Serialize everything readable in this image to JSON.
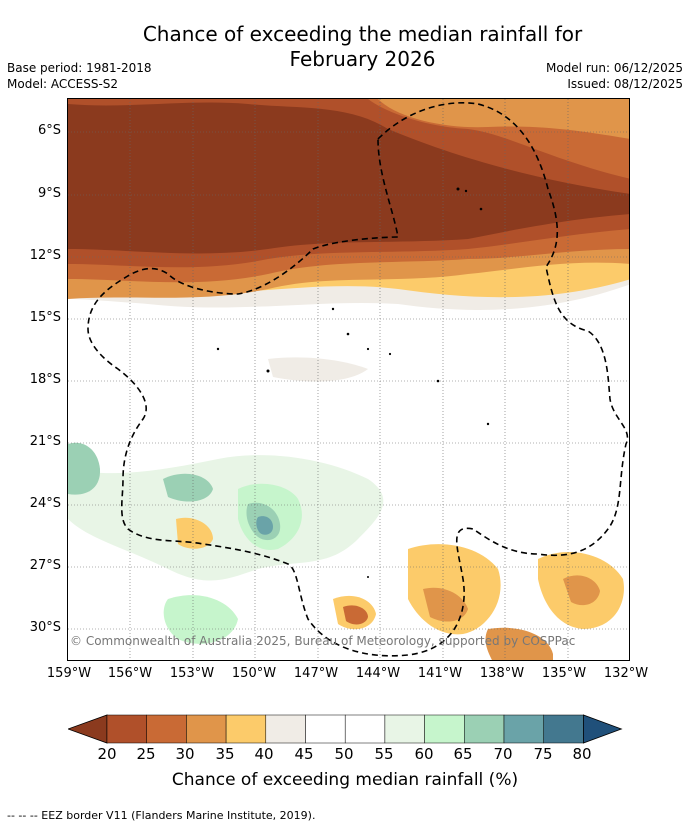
{
  "header": {
    "title_line1": "Chance of exceeding the median rainfall for",
    "title_line2": "February 2026",
    "base_period": "Base period: 1981-2018",
    "model": "Model: ACCESS-S2",
    "model_run": "Model run: 06/12/2025",
    "issued": "Issued: 08/12/2025"
  },
  "map": {
    "lat_labels": [
      "6°S",
      "9°S",
      "12°S",
      "15°S",
      "18°S",
      "21°S",
      "24°S",
      "27°S",
      "30°S"
    ],
    "lon_labels": [
      "159°W",
      "156°W",
      "153°W",
      "150°W",
      "147°W",
      "144°W",
      "141°W",
      "138°W",
      "135°W",
      "132°W"
    ],
    "copyright": "© Commonwealth of Australia 2025, Bureau of Meteorology, supported by COSPPac"
  },
  "colorbar": {
    "ticks": [
      "20",
      "25",
      "30",
      "35",
      "40",
      "45",
      "50",
      "55",
      "60",
      "65",
      "70",
      "75",
      "80"
    ],
    "colors": [
      "#8b3a1e",
      "#b0502a",
      "#c96a35",
      "#e0954a",
      "#fccb6a",
      "#f0ece6",
      "#ffffff",
      "#ffffff",
      "#e8f5e6",
      "#c6f5cc",
      "#9bd0b4",
      "#6aa3a8",
      "#43788f",
      "#20507a"
    ],
    "label": "Chance of exceeding median rainfall (%)"
  },
  "footnote": "--  --  -- EEZ border V11 (Flanders Marine Institute, 2019)."
}
